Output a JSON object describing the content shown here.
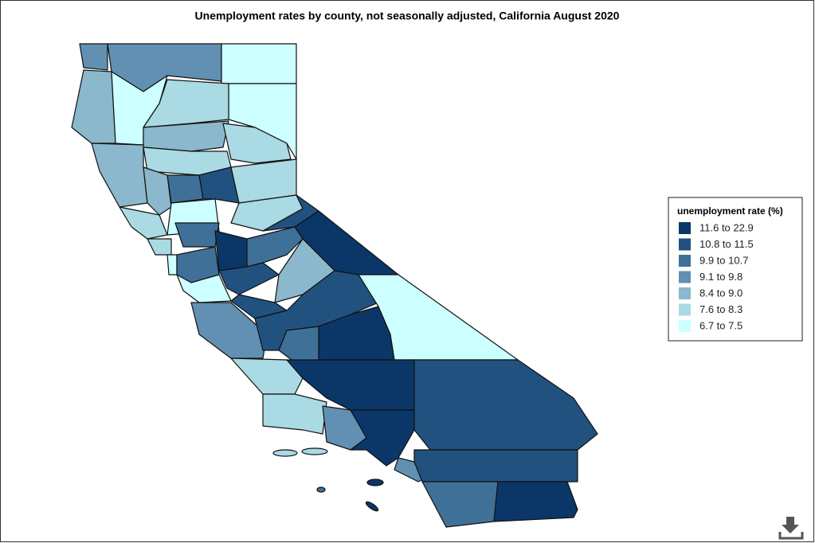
{
  "title": "Unemployment rates by county, not seasonally adjusted, California August 2020",
  "legend": {
    "title": "unemployment rate (%)",
    "items": [
      {
        "label": "11.6 to 22.9",
        "color": "#0b3768"
      },
      {
        "label": "10.8 to 11.5",
        "color": "#21527f"
      },
      {
        "label": "9.9 to 10.7",
        "color": "#3f7098"
      },
      {
        "label": "9.1 to 9.8",
        "color": "#6190b2"
      },
      {
        "label": "8.4 to 9.0",
        "color": "#8bb8cc"
      },
      {
        "label": "7.6 to 8.3",
        "color": "#aadae3"
      },
      {
        "label": "6.7 to 7.5",
        "color": "#ccffff"
      }
    ]
  }
}
